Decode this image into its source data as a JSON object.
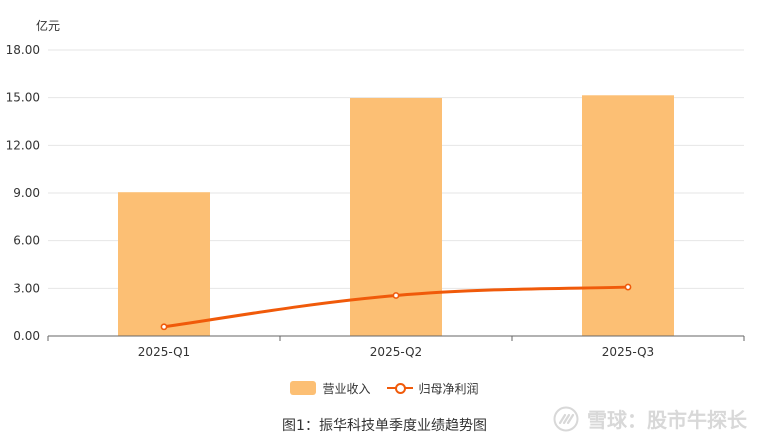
{
  "colors": {
    "bar": "#fcbf74",
    "line": "#f05a0a",
    "grid": "#e6e6e6",
    "axis": "#666666",
    "text": "#333333"
  },
  "chart_data": {
    "type": "bar",
    "unit_label": "亿元",
    "categories": [
      "2025-Q1",
      "2025-Q2",
      "2025-Q3"
    ],
    "y_ticks": [
      "0.00",
      "3.00",
      "6.00",
      "9.00",
      "12.00",
      "15.00",
      "18.00"
    ],
    "ylim": [
      0,
      18
    ],
    "grid": true,
    "legend_position": "bottom",
    "series": [
      {
        "name": "营业收入",
        "type": "bar",
        "values": [
          9.05,
          14.98,
          15.15
        ]
      },
      {
        "name": "归母净利润",
        "type": "line",
        "smooth": true,
        "values": [
          0.58,
          2.55,
          3.08
        ]
      }
    ]
  },
  "caption": "图1：振华科技单季度业绩趋势图",
  "watermark": {
    "text": "雪球：股市牛探长",
    "icon": "xueqiu-logo-icon"
  }
}
